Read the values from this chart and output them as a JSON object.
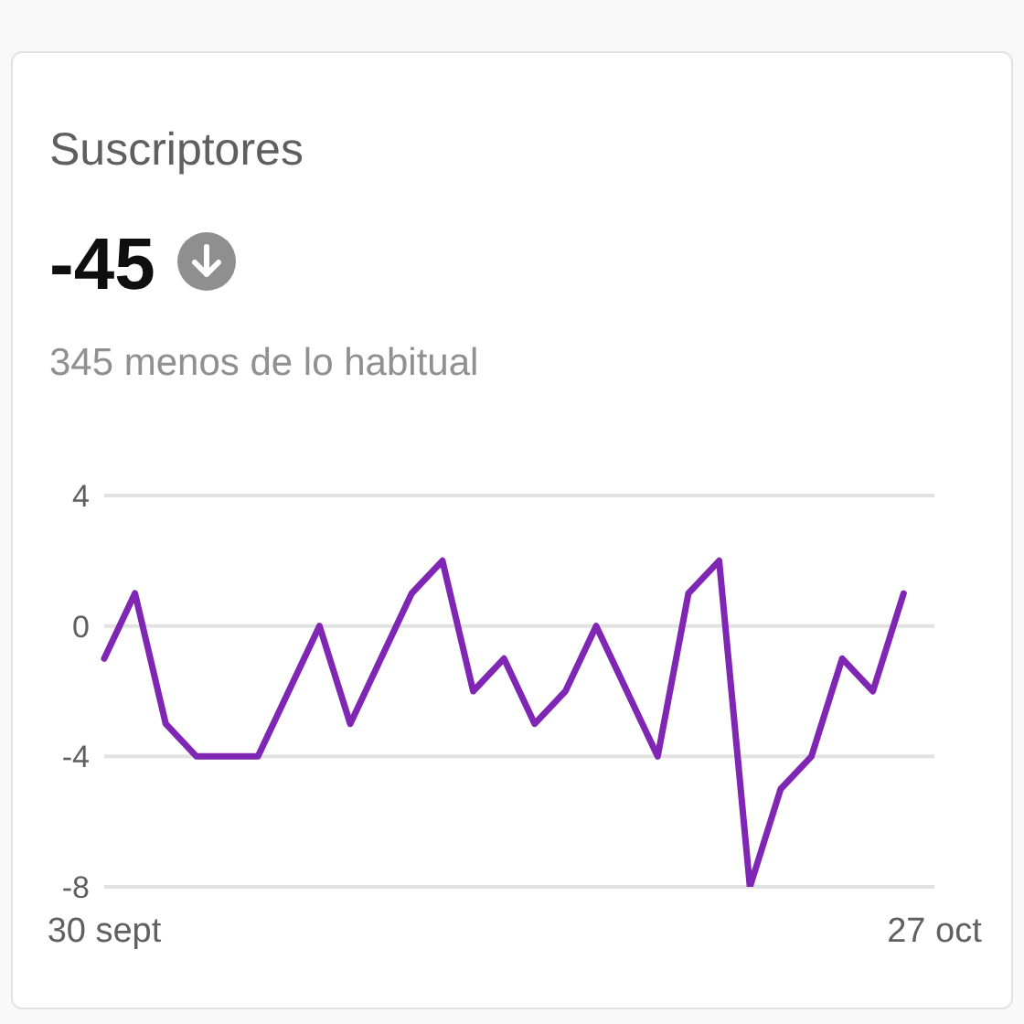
{
  "chart_data": {
    "type": "line",
    "title": "Suscriptores",
    "subtitle": "-45",
    "annotations": [
      "345 menos de lo habitual"
    ],
    "categories": [
      "30 sept",
      null,
      null,
      null,
      null,
      null,
      null,
      null,
      null,
      null,
      null,
      null,
      null,
      null,
      null,
      null,
      null,
      null,
      null,
      null,
      null,
      null,
      null,
      null,
      null,
      null,
      null,
      "27 oct"
    ],
    "values": [
      -1,
      1,
      -3,
      -4,
      -4,
      -4,
      -2,
      0,
      -3,
      -1,
      1,
      2,
      -2,
      -1,
      -3,
      -2,
      0,
      -2,
      -4,
      1,
      2,
      -8,
      -5,
      -4,
      -1,
      -2,
      1,
      null
    ],
    "color": "#8026b4",
    "ylim": [
      -8,
      4
    ],
    "yticks": [
      -8,
      -4,
      0,
      4
    ],
    "grid": "y"
  }
}
